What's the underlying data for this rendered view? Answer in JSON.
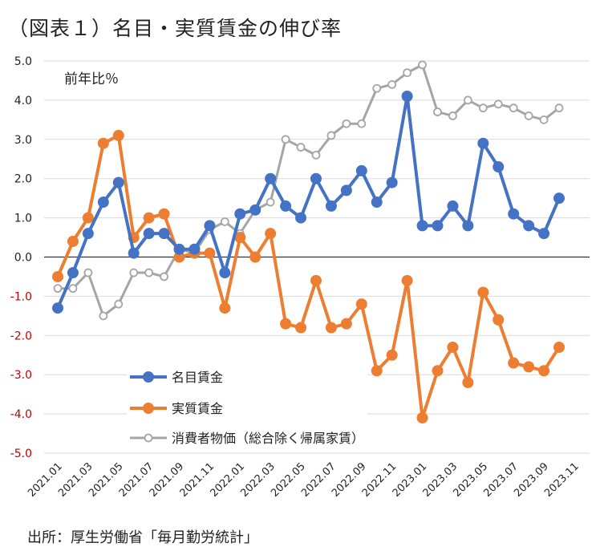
{
  "title": "（図表１）名目・実質賃金の伸び率",
  "source": "出所：厚生労働省「毎月勤労統計」",
  "chart_data": {
    "type": "line",
    "annotation": "前年比％",
    "ylim": [
      -5.0,
      5.0
    ],
    "yticks": [
      "5.0",
      "4.0",
      "3.0",
      "2.0",
      "1.0",
      "0.0",
      "-1.0",
      "-2.0",
      "-3.0",
      "-4.0",
      "-5.0"
    ],
    "ytick_values": [
      5,
      4,
      3,
      2,
      1,
      0,
      -1,
      -2,
      -3,
      -4,
      -5
    ],
    "xtick_labels": [
      "2021.01",
      "2021.03",
      "2021.05",
      "2021.07",
      "2021.09",
      "2021.11",
      "2022.01",
      "2022.03",
      "2022.05",
      "2022.07",
      "2022.09",
      "2022.11",
      "2023.01",
      "2023.03",
      "2023.05",
      "2023.07",
      "2023.09",
      "2023.11"
    ],
    "categories": [
      "2021.01",
      "2021.02",
      "2021.03",
      "2021.04",
      "2021.05",
      "2021.06",
      "2021.07",
      "2021.08",
      "2021.09",
      "2021.10",
      "2021.11",
      "2021.12",
      "2022.01",
      "2022.02",
      "2022.03",
      "2022.04",
      "2022.05",
      "2022.06",
      "2022.07",
      "2022.08",
      "2022.09",
      "2022.10",
      "2022.11",
      "2022.12",
      "2023.01",
      "2023.02",
      "2023.03",
      "2023.04",
      "2023.05",
      "2023.06",
      "2023.07",
      "2023.08",
      "2023.09",
      "2023.10"
    ],
    "series": [
      {
        "name": "名目賃金",
        "color": "#4472C4",
        "marker": "filled",
        "values": [
          -1.3,
          -0.4,
          0.6,
          1.4,
          1.9,
          0.1,
          0.6,
          0.6,
          0.2,
          0.2,
          0.8,
          -0.4,
          1.1,
          1.2,
          2.0,
          1.3,
          1.0,
          2.0,
          1.3,
          1.7,
          2.2,
          1.4,
          1.9,
          4.1,
          0.8,
          0.8,
          1.3,
          0.8,
          2.9,
          2.3,
          1.1,
          0.8,
          0.6,
          1.5
        ]
      },
      {
        "name": "実質賃金",
        "color": "#ED7D31",
        "marker": "filled",
        "values": [
          -0.5,
          0.4,
          1.0,
          2.9,
          3.1,
          0.5,
          1.0,
          1.1,
          0.0,
          0.1,
          0.1,
          -1.3,
          0.5,
          0.0,
          0.6,
          -1.7,
          -1.8,
          -0.6,
          -1.8,
          -1.7,
          -1.2,
          -2.9,
          -2.5,
          -0.6,
          -4.1,
          -2.9,
          -2.3,
          -3.2,
          -0.9,
          -1.6,
          -2.7,
          -2.8,
          -2.9,
          -2.3
        ]
      },
      {
        "name": "消費者物価（総合除く帰属家賃）",
        "color": "#A5A5A5",
        "marker": "hollow",
        "values": [
          -0.8,
          -0.8,
          -0.4,
          -1.5,
          -1.2,
          -0.4,
          -0.4,
          -0.5,
          0.2,
          0.1,
          0.7,
          0.9,
          0.6,
          1.2,
          1.4,
          3.0,
          2.8,
          2.6,
          3.1,
          3.4,
          3.4,
          4.3,
          4.4,
          4.7,
          4.9,
          3.7,
          3.6,
          4.0,
          3.8,
          3.9,
          3.8,
          3.6,
          3.5,
          3.8
        ]
      }
    ]
  }
}
